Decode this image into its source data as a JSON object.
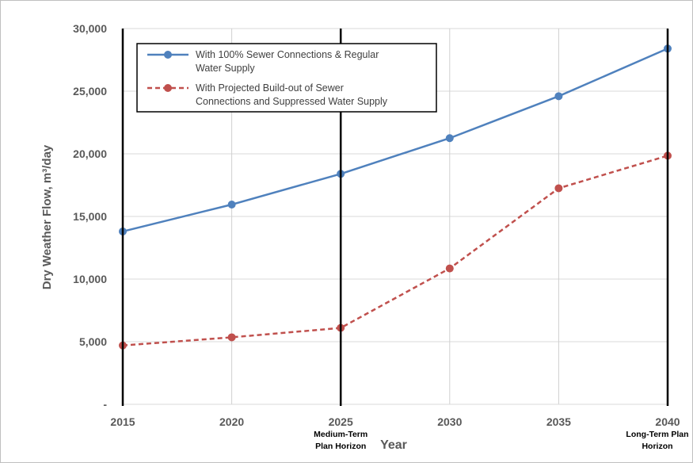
{
  "chart_data": {
    "type": "line",
    "title": "",
    "xlabel": "Year",
    "ylabel": "Dry Weather Flow, m³/day",
    "x": [
      2015,
      2020,
      2025,
      2030,
      2035,
      2040
    ],
    "x_tick_labels": [
      "2015",
      "2020",
      "2025",
      "2030",
      "2035",
      "2040"
    ],
    "y_tick_labels": [
      "-",
      "5,000",
      "10,000",
      "15,000",
      "20,000",
      "25,000",
      "30,000"
    ],
    "y_ticks": [
      0,
      5000,
      10000,
      15000,
      20000,
      25000,
      30000
    ],
    "xlim": [
      2015,
      2040
    ],
    "ylim": [
      0,
      30000
    ],
    "grid": true,
    "legend_position": "top-left",
    "series": [
      {
        "name": "With 100% Sewer Connections & Regular Water Supply",
        "name_lines": [
          "With 100% Sewer Connections & Regular",
          "Water Supply"
        ],
        "values": [
          13800,
          15950,
          18400,
          21250,
          24600,
          28400
        ],
        "color": "#4f81bd",
        "style": "solid"
      },
      {
        "name": "With Projected Build-out of Sewer Connections and Suppressed Water Supply",
        "name_lines": [
          "With Projected Build-out of Sewer",
          "Connections and Suppressed Water Supply"
        ],
        "values": [
          4700,
          5350,
          6100,
          10850,
          17250,
          19850
        ],
        "color": "#c0504d",
        "style": "dashed"
      }
    ],
    "annotations": [
      {
        "x": 2025,
        "lines": [
          "Medium-Term",
          "Plan Horizon"
        ]
      },
      {
        "x": 2040,
        "lines": [
          "Long-Term Plan",
          "Horizon"
        ]
      }
    ]
  }
}
